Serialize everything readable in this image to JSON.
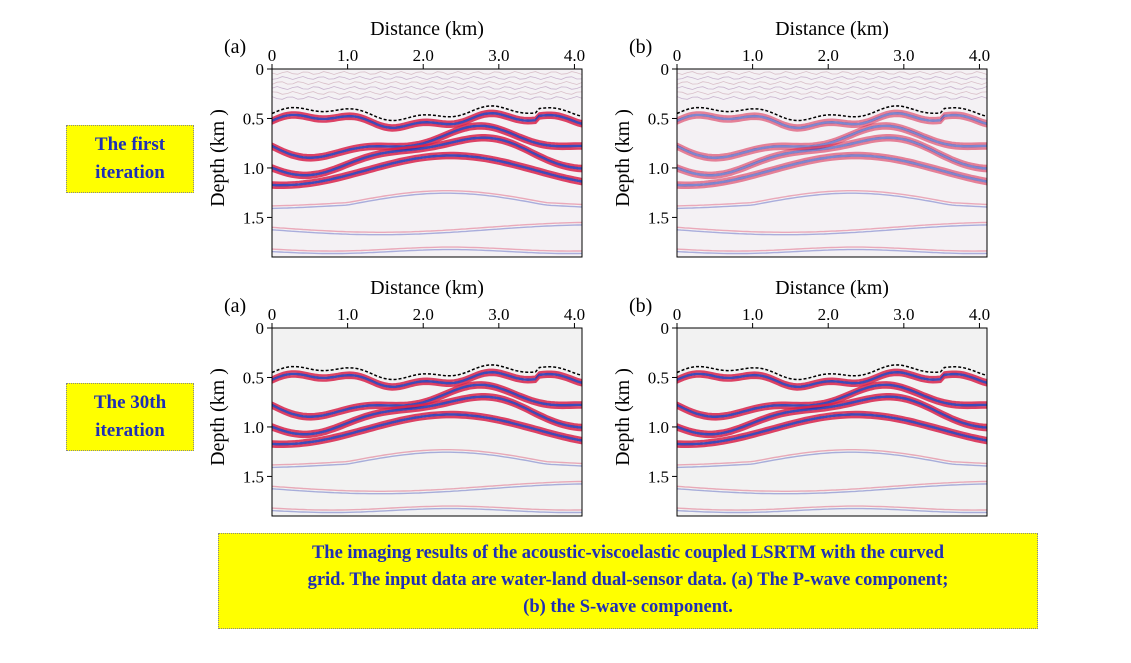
{
  "row_labels": [
    {
      "line1": "The first",
      "line2": "iteration"
    },
    {
      "line1": "The 30th",
      "line2": "iteration"
    }
  ],
  "panels": [
    {
      "letter": "(a)",
      "row": 0,
      "col": 0
    },
    {
      "letter": "(b)",
      "row": 0,
      "col": 1
    },
    {
      "letter": "(a)",
      "row": 1,
      "col": 0
    },
    {
      "letter": "(b)",
      "row": 1,
      "col": 1
    }
  ],
  "axes": {
    "x_title": "Distance (km)",
    "y_title": "Depth (km )",
    "x_ticks": [
      "0",
      "1.0",
      "2.0",
      "3.0",
      "4.0"
    ],
    "y_ticks": [
      "0",
      "0.5",
      "1.0",
      "1.5"
    ]
  },
  "caption": {
    "line1": "The imaging results of the acoustic-viscoelastic coupled LSRTM with the curved",
    "line2": "grid. The input data are water-land dual-sensor data. (a) The P-wave component;",
    "line3": "(b) the S-wave component."
  },
  "colors": {
    "label_bg": "#ffff00",
    "label_text": "#1f2fb5",
    "red_event": "#d8224a",
    "blue_event": "#1c2fb0"
  }
}
